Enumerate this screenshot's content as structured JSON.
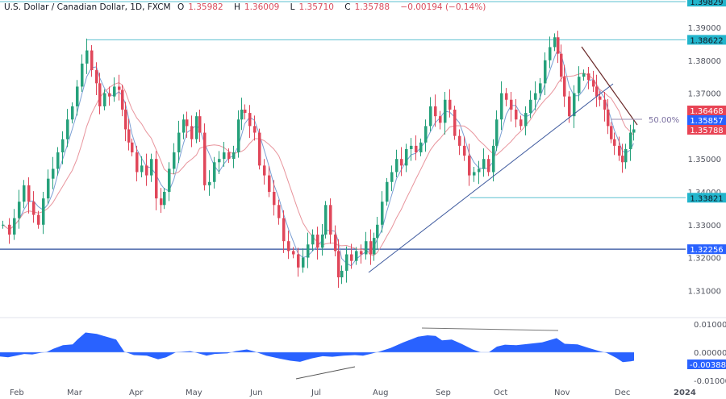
{
  "header": {
    "symbol": "U.S. Dollar / Canadian Dollar, 1D, FXCM",
    "open_label": "O",
    "open": "1.35982",
    "high_label": "H",
    "high": "1.36009",
    "low_label": "L",
    "low": "1.35710",
    "close_label": "C",
    "close": "1.35788",
    "change": "−0.00194 (−0.14%)"
  },
  "colors": {
    "up": "#26a17b",
    "down": "#e0475a",
    "ma_fast": "#7b9fd4",
    "ma_slow": "#e8949c",
    "horizontal_level": "#5bc0d0",
    "support_line": "#2a4b9b",
    "trendline_up": "#3e5a9e",
    "trendline_down": "#6b2a2a",
    "fib_line": "#9a8fb0",
    "oscillator": "#2962ff",
    "tag_cyan": "#22b5cc",
    "tag_red": "#e84455",
    "tag_blue": "#2962ff"
  },
  "price_axis": {
    "ticks": [
      "1.39000",
      "1.38000",
      "1.37000",
      "1.35000",
      "1.34000",
      "1.33000",
      "1.32000",
      "1.31000"
    ],
    "tags": [
      {
        "label": "1.39829",
        "kind": "cyan"
      },
      {
        "label": "1.38622",
        "kind": "cyan"
      },
      {
        "label": "1.36468",
        "kind": "red"
      },
      {
        "label": "1.35857",
        "kind": "blue"
      },
      {
        "label": "1.35788",
        "kind": "red"
      },
      {
        "label": "1.33821",
        "kind": "cyan"
      },
      {
        "label": "1.32256",
        "kind": "blue"
      }
    ]
  },
  "fib_label": "50.00%",
  "osc_axis": {
    "ticks": [
      "0.01000",
      "0.00000",
      "-0.01000"
    ],
    "tag": "-0.00388"
  },
  "time_axis": {
    "labels": [
      "Feb",
      "Mar",
      "Apr",
      "May",
      "Jun",
      "Jul",
      "Aug",
      "Sep",
      "Oct",
      "Nov",
      "Dec",
      "2024"
    ]
  },
  "chart_data": {
    "type": "candlestick",
    "title": "U.S. Dollar / Canadian Dollar, 1D, FXCM",
    "last_bar": {
      "open": 1.35982,
      "high": 1.36009,
      "low": 1.3571,
      "close": 1.35788,
      "change": -0.00194,
      "change_pct": -0.14
    },
    "xlabel": "",
    "ylabel": "",
    "ylim": [
      1.305,
      1.4
    ],
    "x_tick_labels": [
      "Feb",
      "Mar",
      "Apr",
      "May",
      "Jun",
      "Jul",
      "Aug",
      "Sep",
      "Oct",
      "Nov",
      "Dec",
      "2024"
    ],
    "monthly_approx_closes": {
      "Feb": 1.358,
      "Mar": 1.379,
      "Apr": 1.338,
      "May": 1.36,
      "Jun": 1.342,
      "Jul": 1.325,
      "Aug": 1.355,
      "Sep": 1.356,
      "Oct": 1.373,
      "Nov": 1.366,
      "Dec": 1.3579
    },
    "key_levels": [
      {
        "price": 1.39829,
        "type": "horizontal"
      },
      {
        "price": 1.38622,
        "type": "horizontal resistance (Mar high)"
      },
      {
        "price": 1.33821,
        "type": "horizontal support (Sep low)"
      },
      {
        "price": 1.32256,
        "type": "horizontal support"
      }
    ],
    "moving_averages": [
      {
        "name": "Fast MA",
        "color": "#7b9fd4",
        "last": 1.35857
      },
      {
        "name": "Slow MA",
        "color": "#e8949c",
        "last": 1.36468
      }
    ],
    "drawings": [
      {
        "type": "trendline",
        "desc": "rising trendline from late-Jul low (~1.316) through Sep low toward Nov"
      },
      {
        "type": "trendline",
        "desc": "falling trendline from mid-Nov high (~1.385) down to Dec"
      },
      {
        "type": "fib_level",
        "label": "50.00%",
        "price": 1.3596
      }
    ],
    "oscillator": {
      "type": "area",
      "ylim": [
        -0.011,
        0.011
      ],
      "ticks": [
        0.01,
        0.0,
        -0.01
      ],
      "last": -0.00388,
      "desc": "MACD-like oscillator with bullish divergence in Jul and bearish divergence Aug–Oct"
    }
  }
}
